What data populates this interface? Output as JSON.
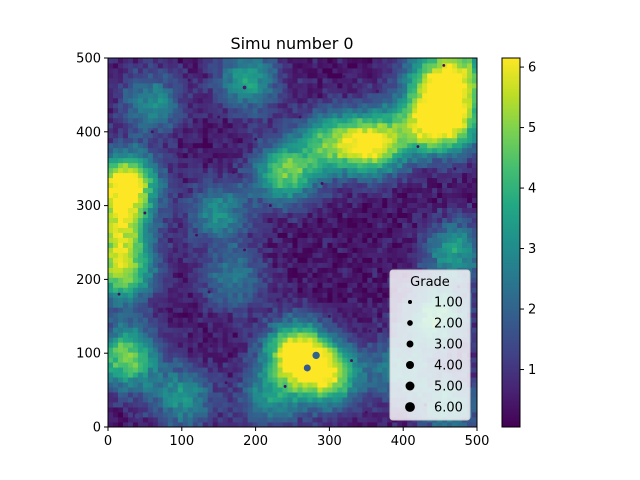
{
  "chart_data": {
    "type": "heatmap",
    "title": "Simu number 0",
    "xlabel": "",
    "ylabel": "",
    "xlim": [
      0,
      500
    ],
    "ylim": [
      0,
      500
    ],
    "x_ticks": [
      "0",
      "100",
      "200",
      "300",
      "400",
      "500"
    ],
    "y_ticks": [
      "0",
      "100",
      "200",
      "300",
      "400",
      "500"
    ],
    "grid": false,
    "colormap": "viridis",
    "colorbar": {
      "range": [
        0.05,
        6.15
      ],
      "ticks": [
        "1",
        "2",
        "3",
        "4",
        "5",
        "6"
      ]
    },
    "field_hotspots": [
      {
        "x": 255,
        "y": 100,
        "value": 6.1
      },
      {
        "x": 300,
        "y": 70,
        "value": 4.8
      },
      {
        "x": 25,
        "y": 330,
        "value": 6.1
      },
      {
        "x": 15,
        "y": 270,
        "value": 4.2
      },
      {
        "x": 20,
        "y": 210,
        "value": 4.6
      },
      {
        "x": 25,
        "y": 95,
        "value": 4.6
      },
      {
        "x": 360,
        "y": 385,
        "value": 5.6
      },
      {
        "x": 300,
        "y": 385,
        "value": 3.8
      },
      {
        "x": 240,
        "y": 345,
        "value": 4.3
      },
      {
        "x": 430,
        "y": 410,
        "value": 4.0
      },
      {
        "x": 470,
        "y": 415,
        "value": 4.2
      },
      {
        "x": 480,
        "y": 480,
        "value": 3.8
      },
      {
        "x": 440,
        "y": 470,
        "value": 3.6
      },
      {
        "x": 190,
        "y": 470,
        "value": 3.2
      },
      {
        "x": 445,
        "y": 150,
        "value": 3.8
      },
      {
        "x": 470,
        "y": 240,
        "value": 3.0
      },
      {
        "x": 150,
        "y": 290,
        "value": 2.6
      },
      {
        "x": 460,
        "y": 30,
        "value": 2.8
      },
      {
        "x": 100,
        "y": 40,
        "value": 2.8
      },
      {
        "x": 220,
        "y": 40,
        "value": 2.6
      },
      {
        "x": 60,
        "y": 440,
        "value": 2.6
      },
      {
        "x": 170,
        "y": 200,
        "value": 2.2
      },
      {
        "x": 395,
        "y": 80,
        "value": 2.4
      }
    ],
    "samples": [
      {
        "x": 282,
        "y": 97,
        "grade": 2.0
      },
      {
        "x": 270,
        "y": 80,
        "grade": 1.8
      },
      {
        "x": 40,
        "y": 15,
        "grade": 1.2
      },
      {
        "x": 137,
        "y": 183,
        "grade": 0.3
      },
      {
        "x": 230,
        "y": 172,
        "grade": 0.4
      },
      {
        "x": 330,
        "y": 90,
        "grade": 0.3
      },
      {
        "x": 475,
        "y": 190,
        "grade": 0.4
      },
      {
        "x": 455,
        "y": 305,
        "grade": 0.3
      },
      {
        "x": 470,
        "y": 350,
        "grade": 0.3
      },
      {
        "x": 95,
        "y": 370,
        "grade": 0.4
      },
      {
        "x": 150,
        "y": 420,
        "grade": 0.3
      },
      {
        "x": 185,
        "y": 460,
        "grade": 0.5
      },
      {
        "x": 320,
        "y": 475,
        "grade": 0.3
      },
      {
        "x": 365,
        "y": 455,
        "grade": 0.4
      },
      {
        "x": 455,
        "y": 490,
        "grade": 0.3
      },
      {
        "x": 250,
        "y": 230,
        "grade": 0.3
      },
      {
        "x": 120,
        "y": 260,
        "grade": 0.3
      },
      {
        "x": 15,
        "y": 180,
        "grade": 0.3
      },
      {
        "x": 140,
        "y": 110,
        "grade": 0.3
      },
      {
        "x": 220,
        "y": 300,
        "grade": 0.3
      },
      {
        "x": 50,
        "y": 290,
        "grade": 0.3
      },
      {
        "x": 290,
        "y": 330,
        "grade": 0.3
      },
      {
        "x": 330,
        "y": 240,
        "grade": 0.3
      },
      {
        "x": 400,
        "y": 250,
        "grade": 0.3
      },
      {
        "x": 380,
        "y": 180,
        "grade": 0.3
      },
      {
        "x": 300,
        "y": 150,
        "grade": 0.3
      },
      {
        "x": 160,
        "y": 60,
        "grade": 0.3
      },
      {
        "x": 80,
        "y": 160,
        "grade": 0.3
      },
      {
        "x": 200,
        "y": 390,
        "grade": 0.3
      },
      {
        "x": 260,
        "y": 420,
        "grade": 0.3
      },
      {
        "x": 430,
        "y": 30,
        "grade": 0.3
      },
      {
        "x": 350,
        "y": 20,
        "grade": 0.3
      },
      {
        "x": 240,
        "y": 55,
        "grade": 0.3
      },
      {
        "x": 420,
        "y": 380,
        "grade": 0.3
      },
      {
        "x": 170,
        "y": 345,
        "grade": 0.3
      },
      {
        "x": 110,
        "y": 470,
        "grade": 0.3
      },
      {
        "x": 60,
        "y": 400,
        "grade": 0.3
      },
      {
        "x": 185,
        "y": 240,
        "grade": 0.3
      },
      {
        "x": 490,
        "y": 90,
        "grade": 0.3
      },
      {
        "x": 355,
        "y": 130,
        "grade": 0.3
      }
    ],
    "legend": {
      "title": "Grade",
      "placement": "lower-right",
      "entries": [
        {
          "label": "1.00",
          "grade": 1
        },
        {
          "label": "2.00",
          "grade": 2
        },
        {
          "label": "3.00",
          "grade": 3
        },
        {
          "label": "4.00",
          "grade": 4
        },
        {
          "label": "5.00",
          "grade": 5
        },
        {
          "label": "6.00",
          "grade": 6
        }
      ]
    }
  }
}
